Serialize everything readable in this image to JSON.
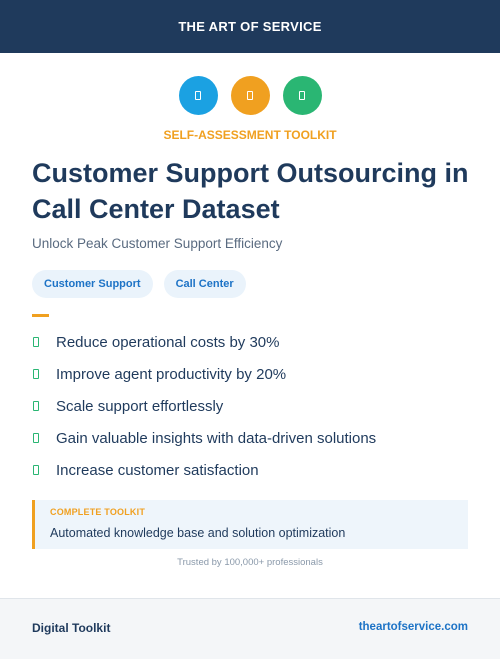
{
  "header": {
    "brand": "THE ART OF SERVICE"
  },
  "icons": [
    {
      "name": "blue-badge-icon",
      "color": "#1ba1e2"
    },
    {
      "name": "orange-badge-icon",
      "color": "#f0a020"
    },
    {
      "name": "green-badge-icon",
      "color": "#2ab673"
    }
  ],
  "kicker": "SELF-ASSESSMENT TOOLKIT",
  "title": "Customer Support Outsourcing in Call Center Dataset",
  "subtitle": "Unlock Peak Customer Support Efficiency",
  "tags": [
    "Customer Support",
    "Call Center"
  ],
  "benefits": [
    "Reduce operational costs by 30%",
    "Improve agent productivity by 20%",
    "Scale support effortlessly",
    "Gain valuable insights with data-driven solutions",
    "Increase customer satisfaction"
  ],
  "callout": {
    "label": "COMPLETE TOOLKIT",
    "text": "Automated knowledge base and solution optimization"
  },
  "trusted": "Trusted by 100,000+ professionals",
  "footer": {
    "left": "Digital Toolkit",
    "right": "theartofservice.com"
  }
}
